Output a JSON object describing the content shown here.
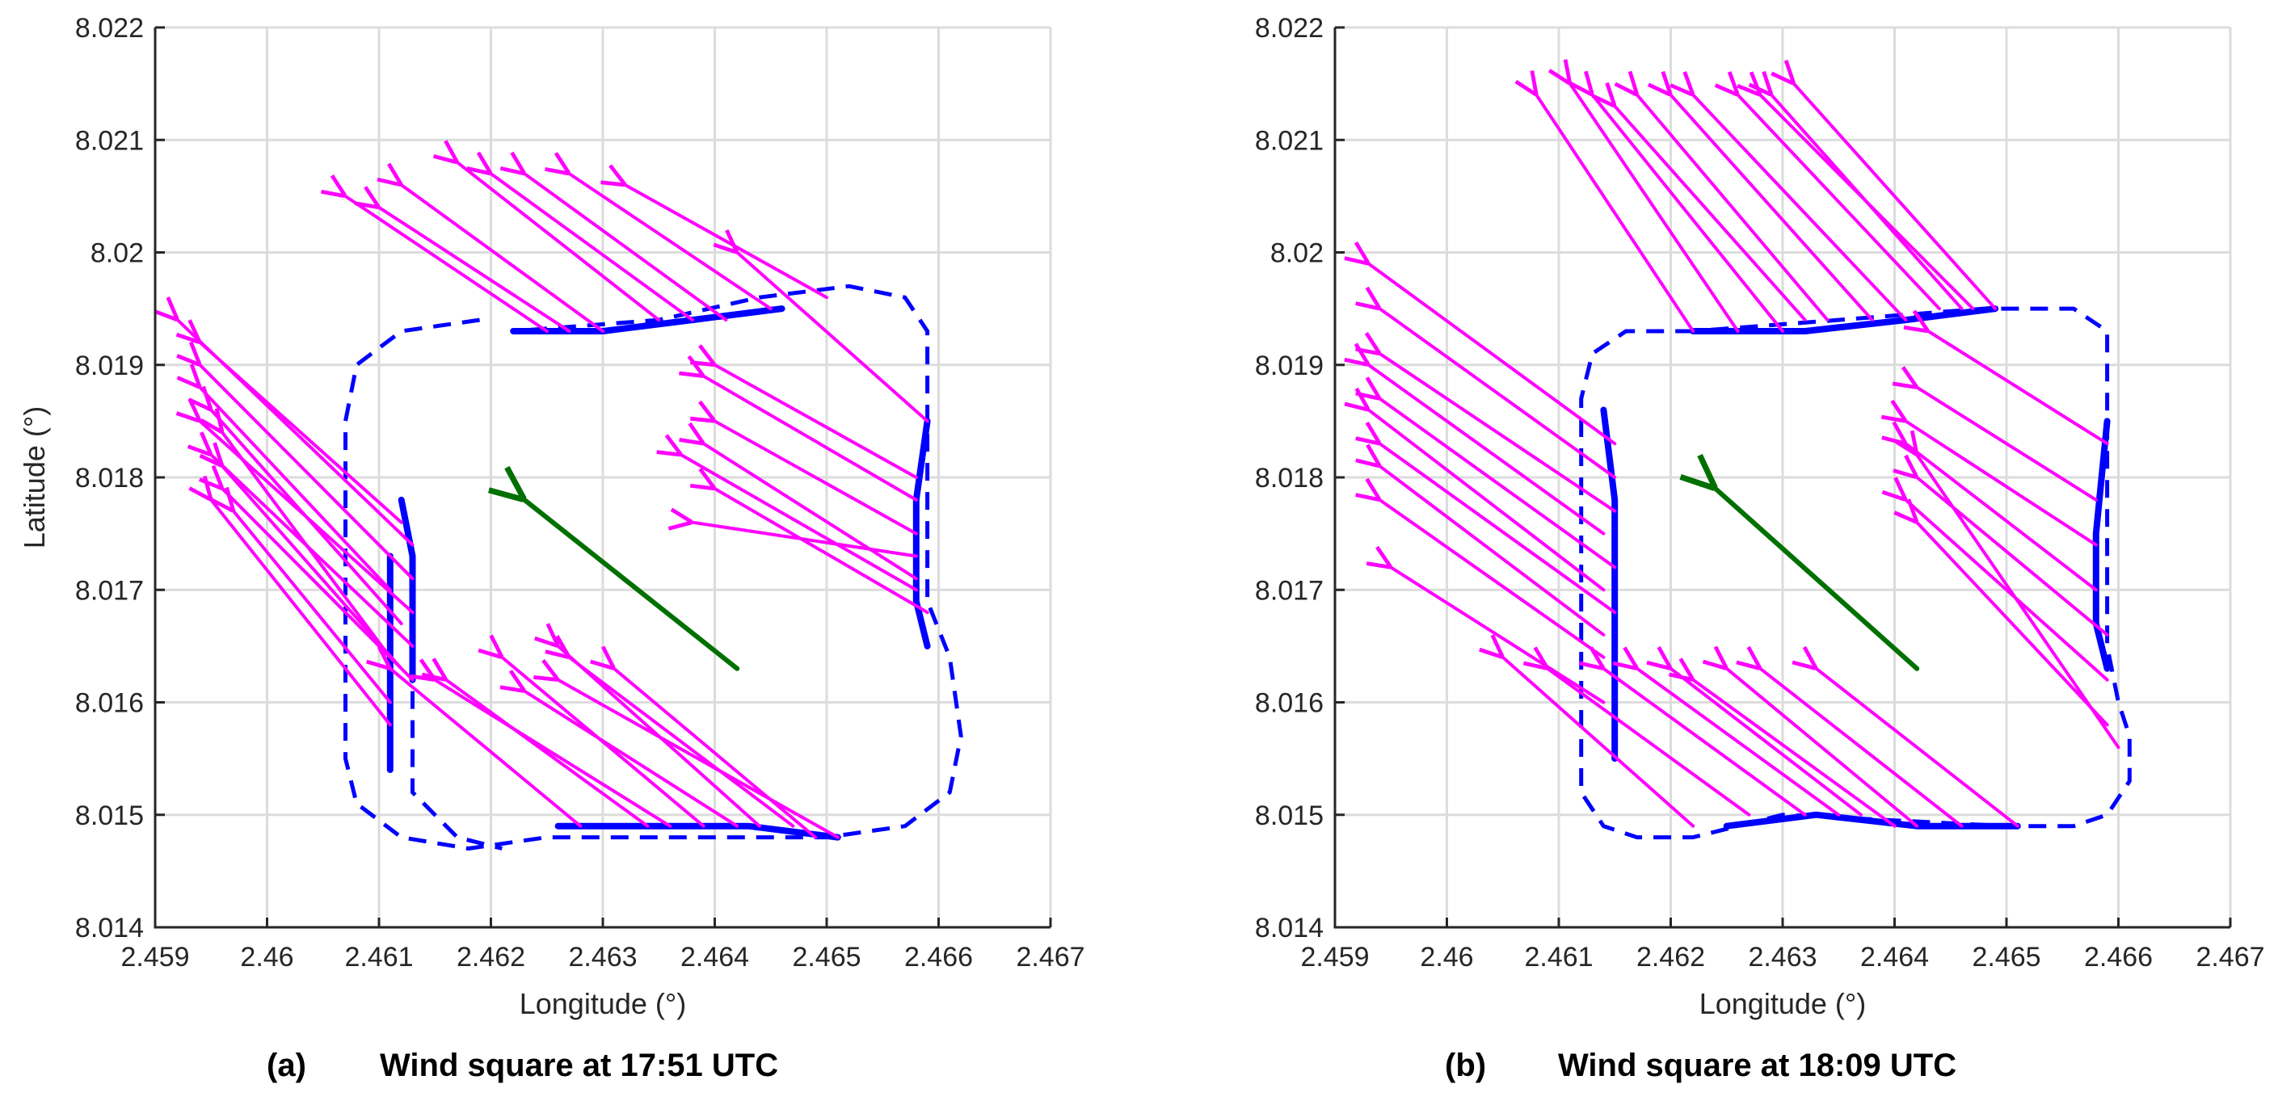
{
  "chart_data": [
    {
      "type": "quiver",
      "panel_label": "(a)",
      "title": "Wind square at 17:51 UTC",
      "xlabel": "Longitude (°)",
      "ylabel": "Latitude (°)",
      "xlim": [
        2.459,
        2.467
      ],
      "ylim": [
        8.014,
        8.022
      ],
      "xticks": [
        2.459,
        2.46,
        2.461,
        2.462,
        2.463,
        2.464,
        2.465,
        2.466,
        2.467
      ],
      "xtick_labels": [
        "2.459",
        "2.46",
        "2.461",
        "2.462",
        "2.463",
        "2.464",
        "2.465",
        "2.466",
        "2.467"
      ],
      "yticks": [
        8.014,
        8.015,
        8.016,
        8.017,
        8.018,
        8.019,
        8.02,
        8.021,
        8.022
      ],
      "ytick_labels": [
        "8.014",
        "8.015",
        "8.016",
        "8.017",
        "8.018",
        "8.019",
        "8.02",
        "8.021",
        "8.022"
      ],
      "grid": true,
      "colors": {
        "wind": "#ff00ff",
        "track": "#0000ff",
        "mean": "#007000"
      },
      "track_dashed": [
        [
          2.4619,
          8.0194
        ],
        [
          2.4612,
          8.0193
        ],
        [
          2.4608,
          8.019
        ],
        [
          2.4607,
          8.0185
        ],
        [
          2.4607,
          8.0165
        ],
        [
          2.4607,
          8.0155
        ],
        [
          2.4608,
          8.0151
        ],
        [
          2.4612,
          8.0148
        ],
        [
          2.4618,
          8.0147
        ],
        [
          2.4625,
          8.0148
        ],
        [
          2.465,
          8.0148
        ],
        [
          2.4657,
          8.0149
        ],
        [
          2.4661,
          8.0152
        ],
        [
          2.4662,
          8.0157
        ],
        [
          2.4661,
          8.0164
        ],
        [
          2.4659,
          8.0169
        ],
        [
          2.4659,
          8.0193
        ],
        [
          2.4657,
          8.0196
        ],
        [
          2.4652,
          8.0197
        ],
        [
          2.4644,
          8.0196
        ],
        [
          2.4635,
          8.0194
        ],
        [
          2.4622,
          8.0193
        ]
      ],
      "track_dashed_inner": [
        [
          2.4613,
          8.0161
        ],
        [
          2.4613,
          8.0152
        ],
        [
          2.4617,
          8.0148
        ],
        [
          2.4621,
          8.0147
        ]
      ],
      "track_solid": [
        [
          [
            2.4622,
            8.0193
          ],
          [
            2.463,
            8.0193
          ],
          [
            2.4638,
            8.0194
          ],
          [
            2.4646,
            8.0195
          ]
        ],
        [
          [
            2.4659,
            8.0185
          ],
          [
            2.4658,
            8.0178
          ],
          [
            2.4658,
            8.0169
          ],
          [
            2.4659,
            8.0165
          ]
        ],
        [
          [
            2.4626,
            8.0149
          ],
          [
            2.4634,
            8.0149
          ],
          [
            2.4643,
            8.0149
          ],
          [
            2.4651,
            8.0148
          ]
        ],
        [
          [
            2.4612,
            8.0178
          ],
          [
            2.4613,
            8.0173
          ],
          [
            2.4613,
            8.0169
          ],
          [
            2.4613,
            8.0162
          ]
        ],
        [
          [
            2.4611,
            8.0173
          ],
          [
            2.4611,
            8.0162
          ],
          [
            2.4611,
            8.0154
          ]
        ]
      ],
      "mean_wind": {
        "from": [
          2.4642,
          8.0163
        ],
        "to": [
          2.4623,
          8.0178
        ]
      },
      "wind_vectors": [
        [
          2.4625,
          8.0193,
          2.4607,
          8.0205
        ],
        [
          2.463,
          8.0193,
          2.4612,
          8.0206
        ],
        [
          2.4635,
          8.0194,
          2.4617,
          8.0208
        ],
        [
          2.4638,
          8.0194,
          2.462,
          8.0207
        ],
        [
          2.4641,
          8.0194,
          2.4623,
          8.0207
        ],
        [
          2.4645,
          8.0195,
          2.4627,
          8.0207
        ],
        [
          2.4627,
          8.0193,
          2.461,
          8.0204
        ],
        [
          2.465,
          8.0196,
          2.4632,
          8.0206
        ],
        [
          2.4659,
          8.0185,
          2.4642,
          8.02
        ],
        [
          2.4658,
          8.018,
          2.464,
          8.019
        ],
        [
          2.4658,
          8.0175,
          2.464,
          8.0185
        ],
        [
          2.4658,
          8.0171,
          2.4639,
          8.0183
        ],
        [
          2.4659,
          8.0168,
          2.464,
          8.0179
        ],
        [
          2.4658,
          8.0178,
          2.4639,
          8.0189
        ],
        [
          2.4658,
          8.0173,
          2.4638,
          8.0176
        ],
        [
          2.4658,
          8.017,
          2.4637,
          8.0182
        ],
        [
          2.4613,
          8.0174,
          2.4592,
          8.0194
        ],
        [
          2.4613,
          8.0171,
          2.4594,
          8.019
        ],
        [
          2.4613,
          8.0168,
          2.4594,
          8.0185
        ],
        [
          2.4613,
          8.0165,
          2.4595,
          8.0182
        ],
        [
          2.4613,
          8.0162,
          2.4596,
          8.0179
        ],
        [
          2.4612,
          8.0176,
          2.4594,
          8.0192
        ],
        [
          2.4612,
          8.0167,
          2.4595,
          8.0186
        ],
        [
          2.4612,
          8.0163,
          2.4596,
          8.0181
        ],
        [
          2.4611,
          8.016,
          2.4597,
          8.0177
        ],
        [
          2.4611,
          8.0158,
          2.4595,
          8.0178
        ],
        [
          2.4611,
          8.0164,
          2.4596,
          8.0184
        ],
        [
          2.4611,
          8.017,
          2.4594,
          8.0188
        ],
        [
          2.4628,
          8.0149,
          2.4611,
          8.0163
        ],
        [
          2.4634,
          8.0149,
          2.4616,
          8.0162
        ],
        [
          2.4639,
          8.0149,
          2.4621,
          8.0164
        ],
        [
          2.4644,
          8.0149,
          2.4626,
          8.0165
        ],
        [
          2.4649,
          8.0148,
          2.4631,
          8.0163
        ],
        [
          2.4651,
          8.0148,
          2.4626,
          8.0162
        ],
        [
          2.4642,
          8.0149,
          2.4623,
          8.0161
        ],
        [
          2.4636,
          8.0149,
          2.4615,
          8.0162
        ],
        [
          2.4647,
          8.0149,
          2.4627,
          8.0164
        ]
      ]
    },
    {
      "type": "quiver",
      "panel_label": "(b)",
      "title": "Wind square at 18:09 UTC",
      "xlabel": "Longitude (°)",
      "ylabel": "",
      "xlim": [
        2.459,
        2.467
      ],
      "ylim": [
        8.014,
        8.022
      ],
      "xticks": [
        2.459,
        2.46,
        2.461,
        2.462,
        2.463,
        2.464,
        2.465,
        2.466,
        2.467
      ],
      "xtick_labels": [
        "2.459",
        "2.46",
        "2.461",
        "2.462",
        "2.463",
        "2.464",
        "2.465",
        "2.466",
        "2.467"
      ],
      "yticks": [
        8.014,
        8.015,
        8.016,
        8.017,
        8.018,
        8.019,
        8.02,
        8.021,
        8.022
      ],
      "ytick_labels": [
        "8.014",
        "8.015",
        "8.016",
        "8.017",
        "8.018",
        "8.019",
        "8.02",
        "8.021",
        "8.022"
      ],
      "grid": true,
      "colors": {
        "wind": "#ff00ff",
        "track": "#0000ff",
        "mean": "#007000"
      },
      "track_dashed": [
        [
          2.4622,
          8.0193
        ],
        [
          2.4616,
          8.0193
        ],
        [
          2.4613,
          8.0191
        ],
        [
          2.4612,
          8.0187
        ],
        [
          2.4612,
          8.016
        ],
        [
          2.4612,
          8.0152
        ],
        [
          2.4614,
          8.0149
        ],
        [
          2.4617,
          8.0148
        ],
        [
          2.4622,
          8.0148
        ],
        [
          2.463,
          8.015
        ],
        [
          2.465,
          8.0149
        ],
        [
          2.4656,
          8.0149
        ],
        [
          2.4659,
          8.015
        ],
        [
          2.4661,
          8.0153
        ],
        [
          2.4661,
          8.0157
        ],
        [
          2.466,
          8.016
        ],
        [
          2.4659,
          8.0165
        ],
        [
          2.4659,
          8.0193
        ],
        [
          2.4656,
          8.0195
        ],
        [
          2.4648,
          8.0195
        ],
        [
          2.4635,
          8.0194
        ],
        [
          2.4622,
          8.0193
        ]
      ],
      "track_dashed_inner": [],
      "track_solid": [
        [
          [
            2.4622,
            8.0193
          ],
          [
            2.4632,
            8.0193
          ],
          [
            2.4641,
            8.0194
          ],
          [
            2.4649,
            8.0195
          ]
        ],
        [
          [
            2.4659,
            8.0185
          ],
          [
            2.4658,
            8.0175
          ],
          [
            2.4658,
            8.0167
          ],
          [
            2.4659,
            8.0163
          ]
        ],
        [
          [
            2.4625,
            8.0149
          ],
          [
            2.4633,
            8.015
          ],
          [
            2.4642,
            8.0149
          ],
          [
            2.4651,
            8.0149
          ]
        ],
        [
          [
            2.4614,
            8.0186
          ],
          [
            2.4615,
            8.0178
          ],
          [
            2.4615,
            8.0168
          ],
          [
            2.4615,
            8.0155
          ]
        ]
      ],
      "mean_wind": {
        "from": [
          2.4642,
          8.0163
        ],
        "to": [
          2.4624,
          8.0179
        ]
      },
      "wind_vectors": [
        [
          2.4622,
          8.0193,
          2.4608,
          8.0214
        ],
        [
          2.4626,
          8.0193,
          2.4611,
          8.0215
        ],
        [
          2.463,
          8.0193,
          2.4613,
          8.0214
        ],
        [
          2.4634,
          8.0194,
          2.4617,
          8.0214
        ],
        [
          2.4638,
          8.0194,
          2.462,
          8.0214
        ],
        [
          2.4641,
          8.0194,
          2.4622,
          8.0214
        ],
        [
          2.4644,
          8.0195,
          2.4626,
          8.0214
        ],
        [
          2.4647,
          8.0195,
          2.4628,
          8.0214
        ],
        [
          2.4649,
          8.0195,
          2.4631,
          8.0215
        ],
        [
          2.4632,
          8.0194,
          2.4615,
          8.0213
        ],
        [
          2.4646,
          8.0195,
          2.4629,
          8.0214
        ],
        [
          2.4659,
          8.0183,
          2.4643,
          8.0193
        ],
        [
          2.4658,
          8.0178,
          2.4642,
          8.0188
        ],
        [
          2.4658,
          8.0174,
          2.4641,
          8.0185
        ],
        [
          2.4658,
          8.017,
          2.4641,
          8.0183
        ],
        [
          2.4659,
          8.0166,
          2.4642,
          8.018
        ],
        [
          2.4659,
          8.0162,
          2.4641,
          8.0178
        ],
        [
          2.4659,
          8.0158,
          2.4642,
          8.0176
        ],
        [
          2.466,
          8.0156,
          2.4642,
          8.0182
        ],
        [
          2.4615,
          8.0183,
          2.4593,
          8.0199
        ],
        [
          2.4615,
          8.018,
          2.4594,
          8.0195
        ],
        [
          2.4615,
          8.0177,
          2.4594,
          8.0191
        ],
        [
          2.4615,
          8.0172,
          2.4594,
          8.0187
        ],
        [
          2.4615,
          8.0168,
          2.4594,
          8.0183
        ],
        [
          2.4614,
          8.0164,
          2.4594,
          8.0178
        ],
        [
          2.4614,
          8.016,
          2.4595,
          8.0172
        ],
        [
          2.4614,
          8.0175,
          2.4593,
          8.019
        ],
        [
          2.4614,
          8.017,
          2.4593,
          8.0186
        ],
        [
          2.4614,
          8.0166,
          2.4594,
          8.0181
        ],
        [
          2.4627,
          8.015,
          2.4609,
          8.0163
        ],
        [
          2.4632,
          8.015,
          2.4614,
          8.0163
        ],
        [
          2.4637,
          8.015,
          2.462,
          8.0163
        ],
        [
          2.4642,
          8.0149,
          2.4625,
          8.0163
        ],
        [
          2.4646,
          8.0149,
          2.4628,
          8.0163
        ],
        [
          2.4651,
          8.0149,
          2.4633,
          8.0163
        ],
        [
          2.4622,
          8.0149,
          2.4605,
          8.0164
        ],
        [
          2.464,
          8.0149,
          2.4622,
          8.0162
        ],
        [
          2.4635,
          8.015,
          2.4617,
          8.0163
        ]
      ]
    }
  ]
}
